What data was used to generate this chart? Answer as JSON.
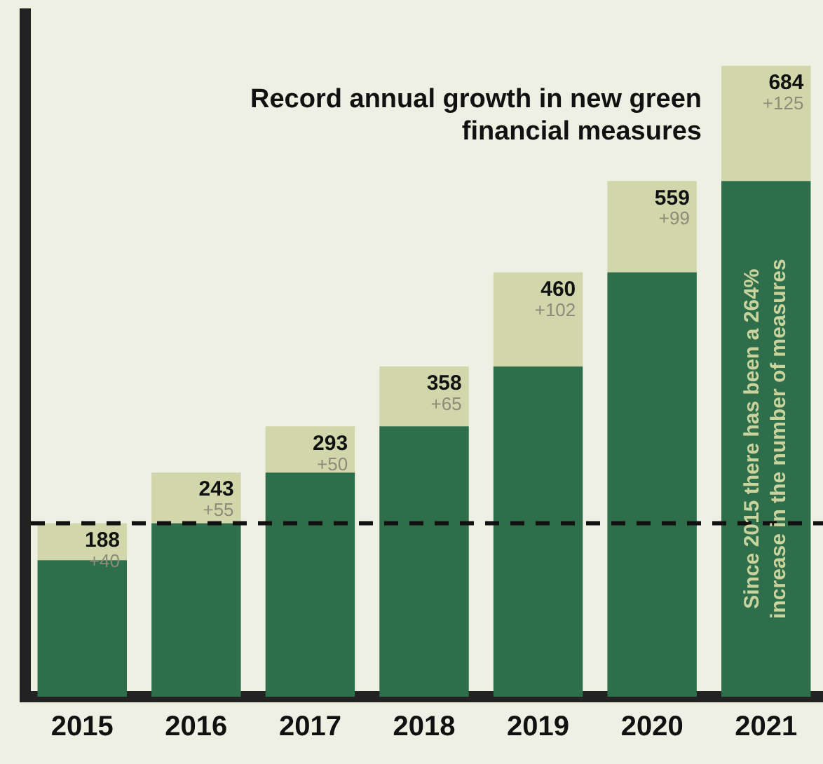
{
  "chart_data": {
    "type": "bar",
    "title": "Record annual growth in new green financial measures",
    "categories": [
      "2015",
      "2016",
      "2017",
      "2018",
      "2019",
      "2020",
      "2021"
    ],
    "stacked": true,
    "series": [
      {
        "color": "#2e6e4a",
        "values": [
          148,
          188,
          243,
          293,
          358,
          460,
          559
        ]
      },
      {
        "color": "#d1d6ab",
        "values": [
          40,
          55,
          50,
          65,
          102,
          99,
          125
        ],
        "value_labels": [
          "+40",
          "+55",
          "+50",
          "+65",
          "+102",
          "+99",
          "+125"
        ]
      }
    ],
    "totals": [
      "188",
      "243",
      "293",
      "358",
      "460",
      "559",
      "684"
    ],
    "ylim": [
      0,
      740
    ],
    "tick_labels": "x",
    "grid": false,
    "legend": false,
    "ref_lines": [
      {
        "axis": "y",
        "value": 188,
        "line_style": "dashed",
        "color": "#111111"
      }
    ],
    "annotations": [
      "Since 2015 there has been a 264% increase in the number of measures"
    ]
  }
}
